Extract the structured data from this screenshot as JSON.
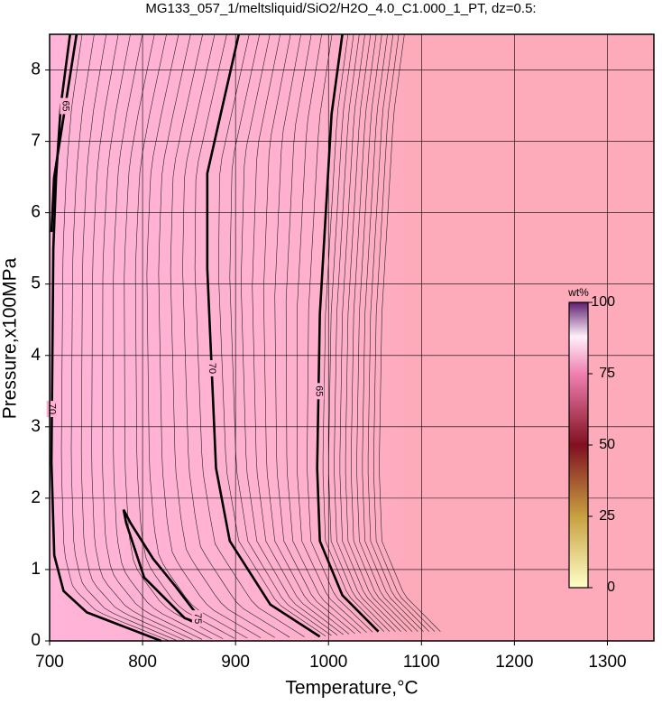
{
  "chart_data": {
    "type": "contour",
    "title": "MG133_057_1/meltsliquid/SiO2/H2O_4.0_C1.000_1_PT, dz=0.5:",
    "x_label": "Temperature,°C",
    "y_label": "Pressure,x100MPa",
    "xlim": [
      700,
      1350
    ],
    "ylim": [
      0,
      8.5
    ],
    "xticks": [
      700,
      800,
      900,
      1000,
      1100,
      1200,
      1300
    ],
    "yticks": [
      0,
      1,
      2,
      3,
      4,
      5,
      6,
      7,
      8
    ],
    "grid": true,
    "colorbar": {
      "label": "wt%",
      "lim": [
        0,
        100
      ],
      "ticks": [
        0,
        25,
        50,
        75,
        100
      ]
    },
    "contours": [
      {
        "level": 70,
        "x": [
          722,
          712,
          707,
          704,
          703,
          702,
          705,
          715,
          740,
          780,
          820
        ],
        "y": [
          8.5,
          7.5,
          6.5,
          5.5,
          4,
          2.5,
          1.2,
          0.7,
          0.4,
          0.2,
          0
        ]
      },
      {
        "level": 70,
        "x": [
          903.5,
          869.6,
          869.6,
          879,
          893.8,
          937.4,
          990.7
        ],
        "y": [
          8.5,
          6.55,
          5.22,
          2.42,
          1.4,
          0.51,
          0.06
        ]
      },
      {
        "level": 65,
        "x": [
          1014.9,
          1003.3,
          990.7,
          987.8,
          990.7,
          1014.9,
          1053.7
        ],
        "y": [
          8.5,
          7.38,
          4.58,
          2.42,
          1.4,
          0.64,
          0.13
        ]
      },
      {
        "level": 75,
        "x": [
          779.5,
          782.4,
          801.7,
          845.3,
          859.9,
          857.9,
          835.7,
          811.4,
          787.2,
          779.5
        ],
        "y": [
          1.84,
          1.65,
          0.89,
          0.32,
          0.25,
          0.38,
          0.76,
          1.15,
          1.65,
          1.84
        ]
      },
      {
        "level": 65,
        "x": [
          729,
          704.8,
          702
        ],
        "y": [
          8.5,
          6.49,
          5.73
        ]
      }
    ]
  }
}
